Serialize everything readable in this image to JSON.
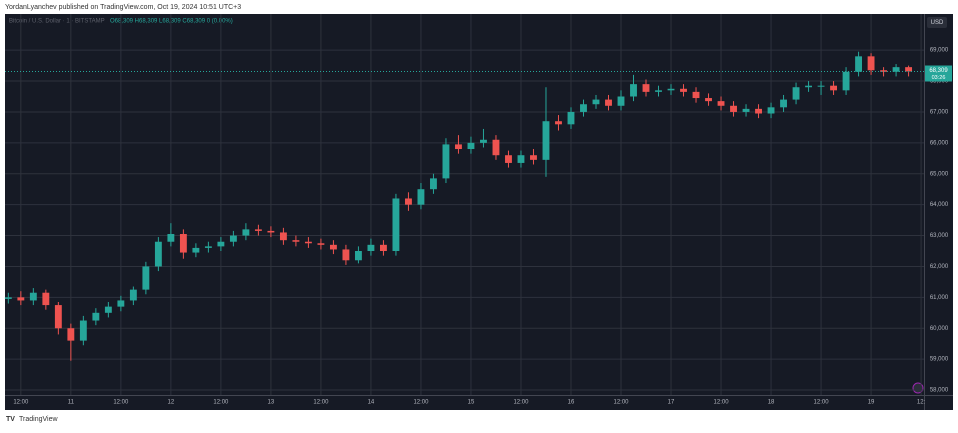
{
  "header": "YordanLyanchev published on TradingView.com, Oct 19, 2024 10:51 UTC+3",
  "footer": "TradingView",
  "chart_data": {
    "type": "candlestick",
    "symbol": "Bitcoin / U.S. Dollar · 1 · BITSTAMP",
    "ohlc_text": "O68,309 H68,309 L68,309 C68,309 0 (0.00%)",
    "currency": "USD",
    "price_label": "68,309",
    "countdown": "03:26",
    "up_color": "#26a69a",
    "down_color": "#ef5350",
    "x": [
      9,
      12,
      15,
      18,
      21,
      24,
      27,
      30,
      33,
      36,
      39,
      42,
      45,
      48,
      51,
      54,
      57,
      60,
      63,
      66,
      69,
      72,
      75,
      78,
      81,
      84,
      87,
      90,
      93,
      96,
      99,
      102,
      105,
      108,
      111,
      114,
      117,
      120,
      123,
      126,
      129,
      132,
      135,
      138,
      141,
      144,
      147,
      150,
      153,
      156,
      159,
      162,
      165,
      168,
      171,
      174,
      177,
      180,
      183,
      186,
      189,
      192,
      195,
      198,
      201,
      204,
      207,
      210,
      213,
      216,
      219,
      222,
      225
    ],
    "open": [
      60950,
      61000,
      60900,
      61150,
      60750,
      60000,
      59600,
      60250,
      60500,
      60700,
      60900,
      61250,
      62000,
      62800,
      63050,
      62450,
      62600,
      62650,
      62800,
      63000,
      63200,
      63150,
      63100,
      62850,
      62800,
      62750,
      62700,
      62550,
      62200,
      62500,
      62700,
      62500,
      64200,
      64000,
      64500,
      64850,
      65950,
      65800,
      66000,
      66100,
      65600,
      65350,
      65600,
      65450,
      66700,
      66600,
      67000,
      67250,
      67400,
      67200,
      67500,
      67900,
      67650,
      67700,
      67750,
      67650,
      67450,
      67350,
      67200,
      67000,
      67100,
      66950,
      67150,
      67400,
      67800,
      67850,
      67850,
      67700,
      68300,
      68800,
      68350,
      68300,
      68450
    ],
    "high": [
      61150,
      61200,
      61300,
      61250,
      60850,
      60150,
      60400,
      60650,
      60850,
      61050,
      61350,
      62150,
      62950,
      63400,
      63200,
      62750,
      62800,
      62950,
      63150,
      63400,
      63350,
      63300,
      63250,
      63000,
      62950,
      62900,
      62850,
      62700,
      62650,
      62900,
      62850,
      64350,
      64400,
      64700,
      65000,
      66150,
      66250,
      66200,
      66450,
      66250,
      65750,
      65750,
      65800,
      67800,
      66900,
      67150,
      67400,
      67550,
      67550,
      67700,
      68200,
      68050,
      67850,
      67900,
      67900,
      67800,
      67600,
      67500,
      67350,
      67250,
      67250,
      67300,
      67550,
      67950,
      68000,
      68000,
      68000,
      68450,
      68950,
      68900,
      68450,
      68550,
      68500
    ],
    "low": [
      60800,
      60750,
      60750,
      60600,
      59800,
      58950,
      59450,
      60100,
      60350,
      60550,
      60750,
      61100,
      61850,
      62650,
      62250,
      62300,
      62450,
      62500,
      62650,
      62850,
      63000,
      62950,
      62700,
      62650,
      62600,
      62550,
      62400,
      62050,
      62100,
      62350,
      62350,
      62350,
      63800,
      63850,
      64350,
      64700,
      65650,
      65650,
      65850,
      65450,
      65200,
      65200,
      65300,
      64900,
      66400,
      66450,
      66850,
      67100,
      67050,
      67050,
      67350,
      67500,
      67500,
      67550,
      67500,
      67300,
      67200,
      67050,
      66850,
      66850,
      66800,
      66800,
      67000,
      67250,
      67650,
      67550,
      67550,
      67550,
      68150,
      68200,
      68150,
      68150,
      68150
    ],
    "close": [
      61000,
      60900,
      61150,
      60750,
      60000,
      59600,
      60250,
      60500,
      60700,
      60900,
      61250,
      62000,
      62800,
      63050,
      62450,
      62600,
      62650,
      62800,
      63000,
      63200,
      63150,
      63100,
      62850,
      62800,
      62750,
      62700,
      62550,
      62200,
      62500,
      62700,
      62500,
      64200,
      64000,
      64500,
      64850,
      65950,
      65800,
      66000,
      66100,
      65600,
      65350,
      65600,
      65450,
      66700,
      66600,
      67000,
      67250,
      67400,
      67200,
      67500,
      67900,
      67650,
      67700,
      67750,
      67650,
      67450,
      67350,
      67200,
      67000,
      67100,
      66950,
      67150,
      67400,
      67800,
      67850,
      67850,
      67700,
      68300,
      68800,
      68350,
      68300,
      68450,
      68309
    ],
    "xlim": [
      8.2,
      228.7
    ],
    "xticks": [
      {
        "value": 12,
        "label": "12:00"
      },
      {
        "value": 24,
        "label": "11"
      },
      {
        "value": 36,
        "label": "12:00"
      },
      {
        "value": 48,
        "label": "12"
      },
      {
        "value": 60,
        "label": "12:00"
      },
      {
        "value": 72,
        "label": "13"
      },
      {
        "value": 84,
        "label": "12:00"
      },
      {
        "value": 96,
        "label": "14"
      },
      {
        "value": 108,
        "label": "12:00"
      },
      {
        "value": 120,
        "label": "15"
      },
      {
        "value": 132,
        "label": "12:00"
      },
      {
        "value": 144,
        "label": "16"
      },
      {
        "value": 156,
        "label": "12:00"
      },
      {
        "value": 168,
        "label": "17"
      },
      {
        "value": 180,
        "label": "12:00"
      },
      {
        "value": 192,
        "label": "18"
      },
      {
        "value": 204,
        "label": "12:00"
      },
      {
        "value": 216,
        "label": "19"
      },
      {
        "value": 228,
        "label": "12:"
      }
    ],
    "ylim": [
      57840,
      70170
    ],
    "yticks": [
      {
        "value": 58000,
        "label": "58,000"
      },
      {
        "value": 59000,
        "label": "59,000"
      },
      {
        "value": 60000,
        "label": "60,000"
      },
      {
        "value": 61000,
        "label": "61,000"
      },
      {
        "value": 62000,
        "label": "62,000"
      },
      {
        "value": 63000,
        "label": "63,000"
      },
      {
        "value": 64000,
        "label": "64,000"
      },
      {
        "value": 65000,
        "label": "65,000"
      },
      {
        "value": 66000,
        "label": "66,000"
      },
      {
        "value": 67000,
        "label": "67,000"
      },
      {
        "value": 68000,
        "label": "68,000"
      },
      {
        "value": 69000,
        "label": "69,000"
      }
    ],
    "grid": true
  }
}
